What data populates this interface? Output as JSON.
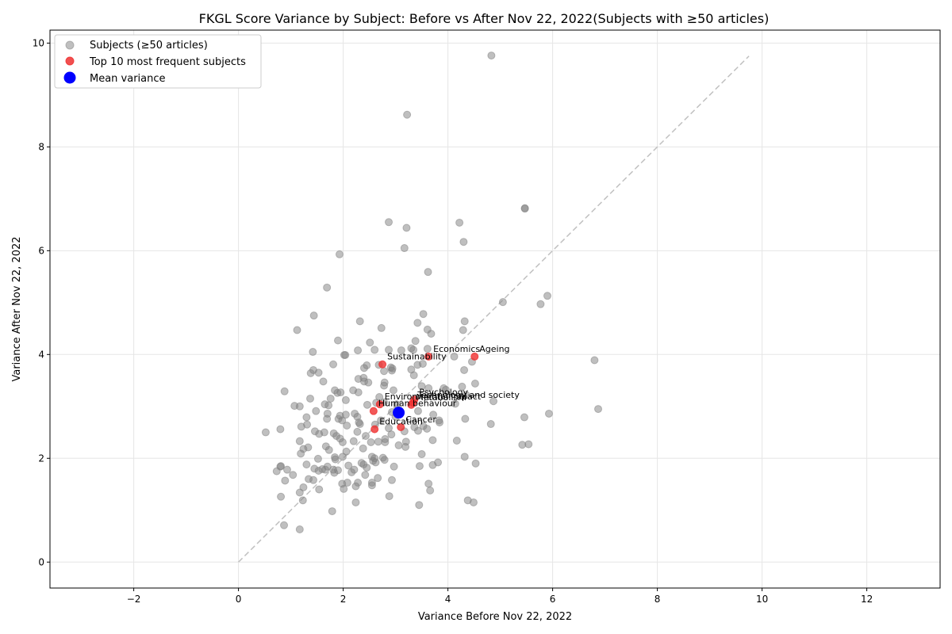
{
  "chart_data": {
    "type": "scatter",
    "title": "FKGL Score Variance by Subject: Before vs After Nov 22, 2022(Subjects with ≥50 articles)",
    "xlabel": "Variance Before Nov 22, 2022",
    "ylabel": "Variance After Nov 22, 2022",
    "xlim": [
      -3.6,
      13.4
    ],
    "ylim": [
      -0.5,
      10.25
    ],
    "xticks": [
      -2,
      0,
      2,
      4,
      6,
      8,
      10,
      12
    ],
    "yticks": [
      0,
      2,
      4,
      6,
      8,
      10
    ],
    "xtick_labels": [
      "−2",
      "0",
      "2",
      "4",
      "6",
      "8",
      "10",
      "12"
    ],
    "ytick_labels": [
      "0",
      "2",
      "4",
      "6",
      "8",
      "10"
    ],
    "grid": true,
    "legend_position": "top-left",
    "diagonal_reference": [
      0,
      9.75
    ],
    "series": [
      {
        "name": "Subjects (≥50 articles)",
        "color": "#808080",
        "points": [
          [
            4.83,
            9.76
          ],
          [
            3.22,
            8.62
          ],
          [
            5.47,
            6.82
          ],
          [
            5.47,
            6.81
          ],
          [
            2.87,
            6.55
          ],
          [
            4.22,
            6.54
          ],
          [
            3.21,
            6.44
          ],
          [
            4.3,
            6.17
          ],
          [
            3.17,
            6.05
          ],
          [
            1.93,
            5.93
          ],
          [
            3.62,
            5.59
          ],
          [
            1.69,
            5.29
          ],
          [
            5.05,
            5.01
          ],
          [
            5.77,
            4.97
          ],
          [
            5.9,
            5.13
          ],
          [
            3.53,
            4.78
          ],
          [
            1.44,
            4.75
          ],
          [
            2.32,
            4.64
          ],
          [
            4.32,
            4.64
          ],
          [
            3.42,
            4.61
          ],
          [
            1.12,
            4.47
          ],
          [
            2.73,
            4.51
          ],
          [
            3.61,
            4.48
          ],
          [
            4.29,
            4.47
          ],
          [
            3.68,
            4.4
          ],
          [
            1.9,
            4.27
          ],
          [
            2.51,
            4.23
          ],
          [
            3.38,
            4.26
          ],
          [
            1.42,
            4.05
          ],
          [
            2.28,
            4.08
          ],
          [
            2.6,
            4.09
          ],
          [
            2.87,
            4.09
          ],
          [
            3.11,
            4.08
          ],
          [
            3.34,
            4.09
          ],
          [
            3.3,
            4.12
          ],
          [
            3.61,
            4.11
          ],
          [
            2.02,
            3.99
          ],
          [
            2.04,
            3.99
          ],
          [
            4.12,
            3.96
          ],
          [
            4.46,
            3.86
          ],
          [
            6.8,
            3.89
          ],
          [
            1.81,
            3.81
          ],
          [
            2.45,
            3.79
          ],
          [
            2.4,
            3.74
          ],
          [
            2.68,
            3.8
          ],
          [
            2.91,
            3.75
          ],
          [
            2.94,
            3.73
          ],
          [
            2.93,
            3.69
          ],
          [
            3.42,
            3.8
          ],
          [
            3.52,
            3.82
          ],
          [
            3.3,
            3.71
          ],
          [
            3.35,
            3.6
          ],
          [
            4.31,
            3.7
          ],
          [
            1.38,
            3.64
          ],
          [
            1.43,
            3.7
          ],
          [
            1.53,
            3.65
          ],
          [
            2.78,
            3.68
          ],
          [
            2.29,
            3.53
          ],
          [
            2.39,
            3.55
          ],
          [
            2.4,
            3.48
          ],
          [
            2.48,
            3.46
          ],
          [
            1.62,
            3.48
          ],
          [
            2.79,
            3.46
          ],
          [
            2.78,
            3.4
          ],
          [
            4.52,
            3.44
          ],
          [
            4.27,
            3.38
          ],
          [
            3.5,
            3.39
          ],
          [
            3.63,
            3.35
          ],
          [
            3.92,
            3.35
          ],
          [
            3.96,
            3.32
          ],
          [
            0.88,
            3.29
          ],
          [
            1.84,
            3.31
          ],
          [
            1.89,
            3.26
          ],
          [
            1.95,
            3.27
          ],
          [
            2.19,
            3.31
          ],
          [
            2.29,
            3.27
          ],
          [
            2.96,
            3.31
          ],
          [
            1.37,
            3.15
          ],
          [
            1.76,
            3.15
          ],
          [
            2.05,
            3.12
          ],
          [
            2.69,
            3.18
          ],
          [
            2.78,
            3.08
          ],
          [
            4.14,
            3.05
          ],
          [
            4.35,
            3.22
          ],
          [
            4.87,
            3.1
          ],
          [
            1.07,
            3.01
          ],
          [
            1.17,
            3.0
          ],
          [
            1.65,
            3.04
          ],
          [
            1.72,
            3.02
          ],
          [
            2.46,
            3.03
          ],
          [
            2.63,
            3.07
          ],
          [
            3.02,
            3.04
          ],
          [
            6.87,
            2.95
          ],
          [
            1.48,
            2.91
          ],
          [
            1.7,
            2.86
          ],
          [
            2.05,
            2.84
          ],
          [
            2.22,
            2.86
          ],
          [
            2.93,
            2.89
          ],
          [
            3.43,
            2.91
          ],
          [
            3.72,
            2.84
          ],
          [
            1.3,
            2.79
          ],
          [
            1.69,
            2.76
          ],
          [
            1.91,
            2.76
          ],
          [
            1.94,
            2.82
          ],
          [
            1.98,
            2.73
          ],
          [
            2.27,
            2.8
          ],
          [
            2.3,
            2.69
          ],
          [
            2.72,
            2.73
          ],
          [
            3.0,
            2.8
          ],
          [
            3.83,
            2.73
          ],
          [
            4.33,
            2.76
          ],
          [
            5.46,
            2.79
          ],
          [
            5.93,
            2.86
          ],
          [
            1.2,
            2.61
          ],
          [
            1.31,
            2.65
          ],
          [
            2.07,
            2.63
          ],
          [
            2.32,
            2.66
          ],
          [
            2.61,
            2.65
          ],
          [
            2.87,
            2.58
          ],
          [
            3.36,
            2.6
          ],
          [
            3.53,
            2.62
          ],
          [
            3.6,
            2.57
          ],
          [
            3.84,
            2.69
          ],
          [
            4.82,
            2.66
          ],
          [
            0.52,
            2.5
          ],
          [
            0.8,
            2.56
          ],
          [
            1.46,
            2.52
          ],
          [
            1.54,
            2.47
          ],
          [
            1.64,
            2.5
          ],
          [
            1.82,
            2.48
          ],
          [
            1.87,
            2.43
          ],
          [
            2.27,
            2.51
          ],
          [
            2.43,
            2.43
          ],
          [
            2.92,
            2.46
          ],
          [
            3.17,
            2.52
          ],
          [
            3.43,
            2.53
          ],
          [
            1.17,
            2.33
          ],
          [
            1.94,
            2.38
          ],
          [
            1.99,
            2.31
          ],
          [
            2.2,
            2.33
          ],
          [
            2.53,
            2.31
          ],
          [
            2.67,
            2.32
          ],
          [
            2.8,
            2.31
          ],
          [
            2.8,
            2.37
          ],
          [
            3.71,
            2.35
          ],
          [
            3.2,
            2.32
          ],
          [
            4.17,
            2.34
          ],
          [
            1.24,
            2.18
          ],
          [
            1.33,
            2.21
          ],
          [
            1.67,
            2.23
          ],
          [
            1.73,
            2.16
          ],
          [
            2.06,
            2.13
          ],
          [
            2.38,
            2.19
          ],
          [
            3.06,
            2.25
          ],
          [
            3.19,
            2.22
          ],
          [
            5.42,
            2.26
          ],
          [
            5.54,
            2.27
          ],
          [
            1.19,
            2.09
          ],
          [
            1.52,
            1.99
          ],
          [
            1.84,
            2.02
          ],
          [
            1.85,
            1.98
          ],
          [
            1.99,
            2.03
          ],
          [
            2.55,
            2.03
          ],
          [
            2.6,
            2.0
          ],
          [
            2.57,
            1.95
          ],
          [
            2.76,
            2.01
          ],
          [
            2.79,
            1.97
          ],
          [
            3.5,
            2.08
          ],
          [
            4.32,
            2.03
          ],
          [
            0.8,
            1.84
          ],
          [
            0.81,
            1.85
          ],
          [
            1.3,
            1.88
          ],
          [
            1.45,
            1.8
          ],
          [
            1.53,
            1.76
          ],
          [
            1.6,
            1.79
          ],
          [
            1.66,
            1.78
          ],
          [
            1.7,
            1.84
          ],
          [
            1.81,
            1.78
          ],
          [
            1.83,
            1.72
          ],
          [
            1.9,
            1.77
          ],
          [
            2.1,
            1.86
          ],
          [
            2.16,
            1.73
          ],
          [
            2.21,
            1.78
          ],
          [
            2.35,
            1.91
          ],
          [
            2.39,
            1.88
          ],
          [
            2.45,
            1.82
          ],
          [
            2.62,
            1.92
          ],
          [
            2.97,
            1.84
          ],
          [
            3.46,
            1.85
          ],
          [
            3.71,
            1.87
          ],
          [
            3.81,
            1.92
          ],
          [
            4.53,
            1.9
          ],
          [
            0.73,
            1.75
          ],
          [
            0.93,
            1.78
          ],
          [
            1.04,
            1.68
          ],
          [
            1.34,
            1.6
          ],
          [
            1.43,
            1.58
          ],
          [
            1.98,
            1.51
          ],
          [
            2.08,
            1.53
          ],
          [
            2.28,
            1.53
          ],
          [
            2.42,
            1.68
          ],
          [
            2.55,
            1.53
          ],
          [
            2.55,
            1.48
          ],
          [
            2.66,
            1.62
          ],
          [
            2.93,
            1.58
          ],
          [
            0.89,
            1.57
          ],
          [
            1.54,
            1.4
          ],
          [
            2.24,
            1.46
          ],
          [
            3.63,
            1.51
          ],
          [
            3.66,
            1.38
          ],
          [
            1.24,
            1.44
          ],
          [
            1.17,
            1.34
          ],
          [
            2.01,
            1.41
          ],
          [
            0.81,
            1.26
          ],
          [
            1.23,
            1.19
          ],
          [
            2.88,
            1.27
          ],
          [
            4.38,
            1.19
          ],
          [
            4.49,
            1.15
          ],
          [
            2.24,
            1.15
          ],
          [
            3.45,
            1.1
          ],
          [
            1.79,
            0.98
          ],
          [
            0.87,
            0.71
          ],
          [
            1.17,
            0.63
          ]
        ]
      },
      {
        "name": "Top 10 most frequent subjects",
        "color": "#ef3030",
        "points": [
          [
            3.63,
            3.96
          ],
          [
            4.51,
            3.96
          ],
          [
            2.75,
            3.81
          ],
          [
            3.36,
            3.13
          ],
          [
            3.33,
            3.07
          ],
          [
            3.3,
            3.03
          ],
          [
            2.7,
            3.04
          ],
          [
            2.58,
            2.91
          ],
          [
            3.1,
            2.6
          ],
          [
            2.6,
            2.56
          ]
        ],
        "labels": [
          "Economics",
          "Ageing",
          "Sustainability",
          "Psychology",
          "Technology and society",
          "Metabolism",
          "Environmental impact",
          "Human behaviour",
          "Cancer",
          "Education"
        ]
      },
      {
        "name": "Mean variance",
        "color": "#0000ff",
        "points": [
          [
            3.06,
            2.88
          ]
        ]
      }
    ]
  }
}
